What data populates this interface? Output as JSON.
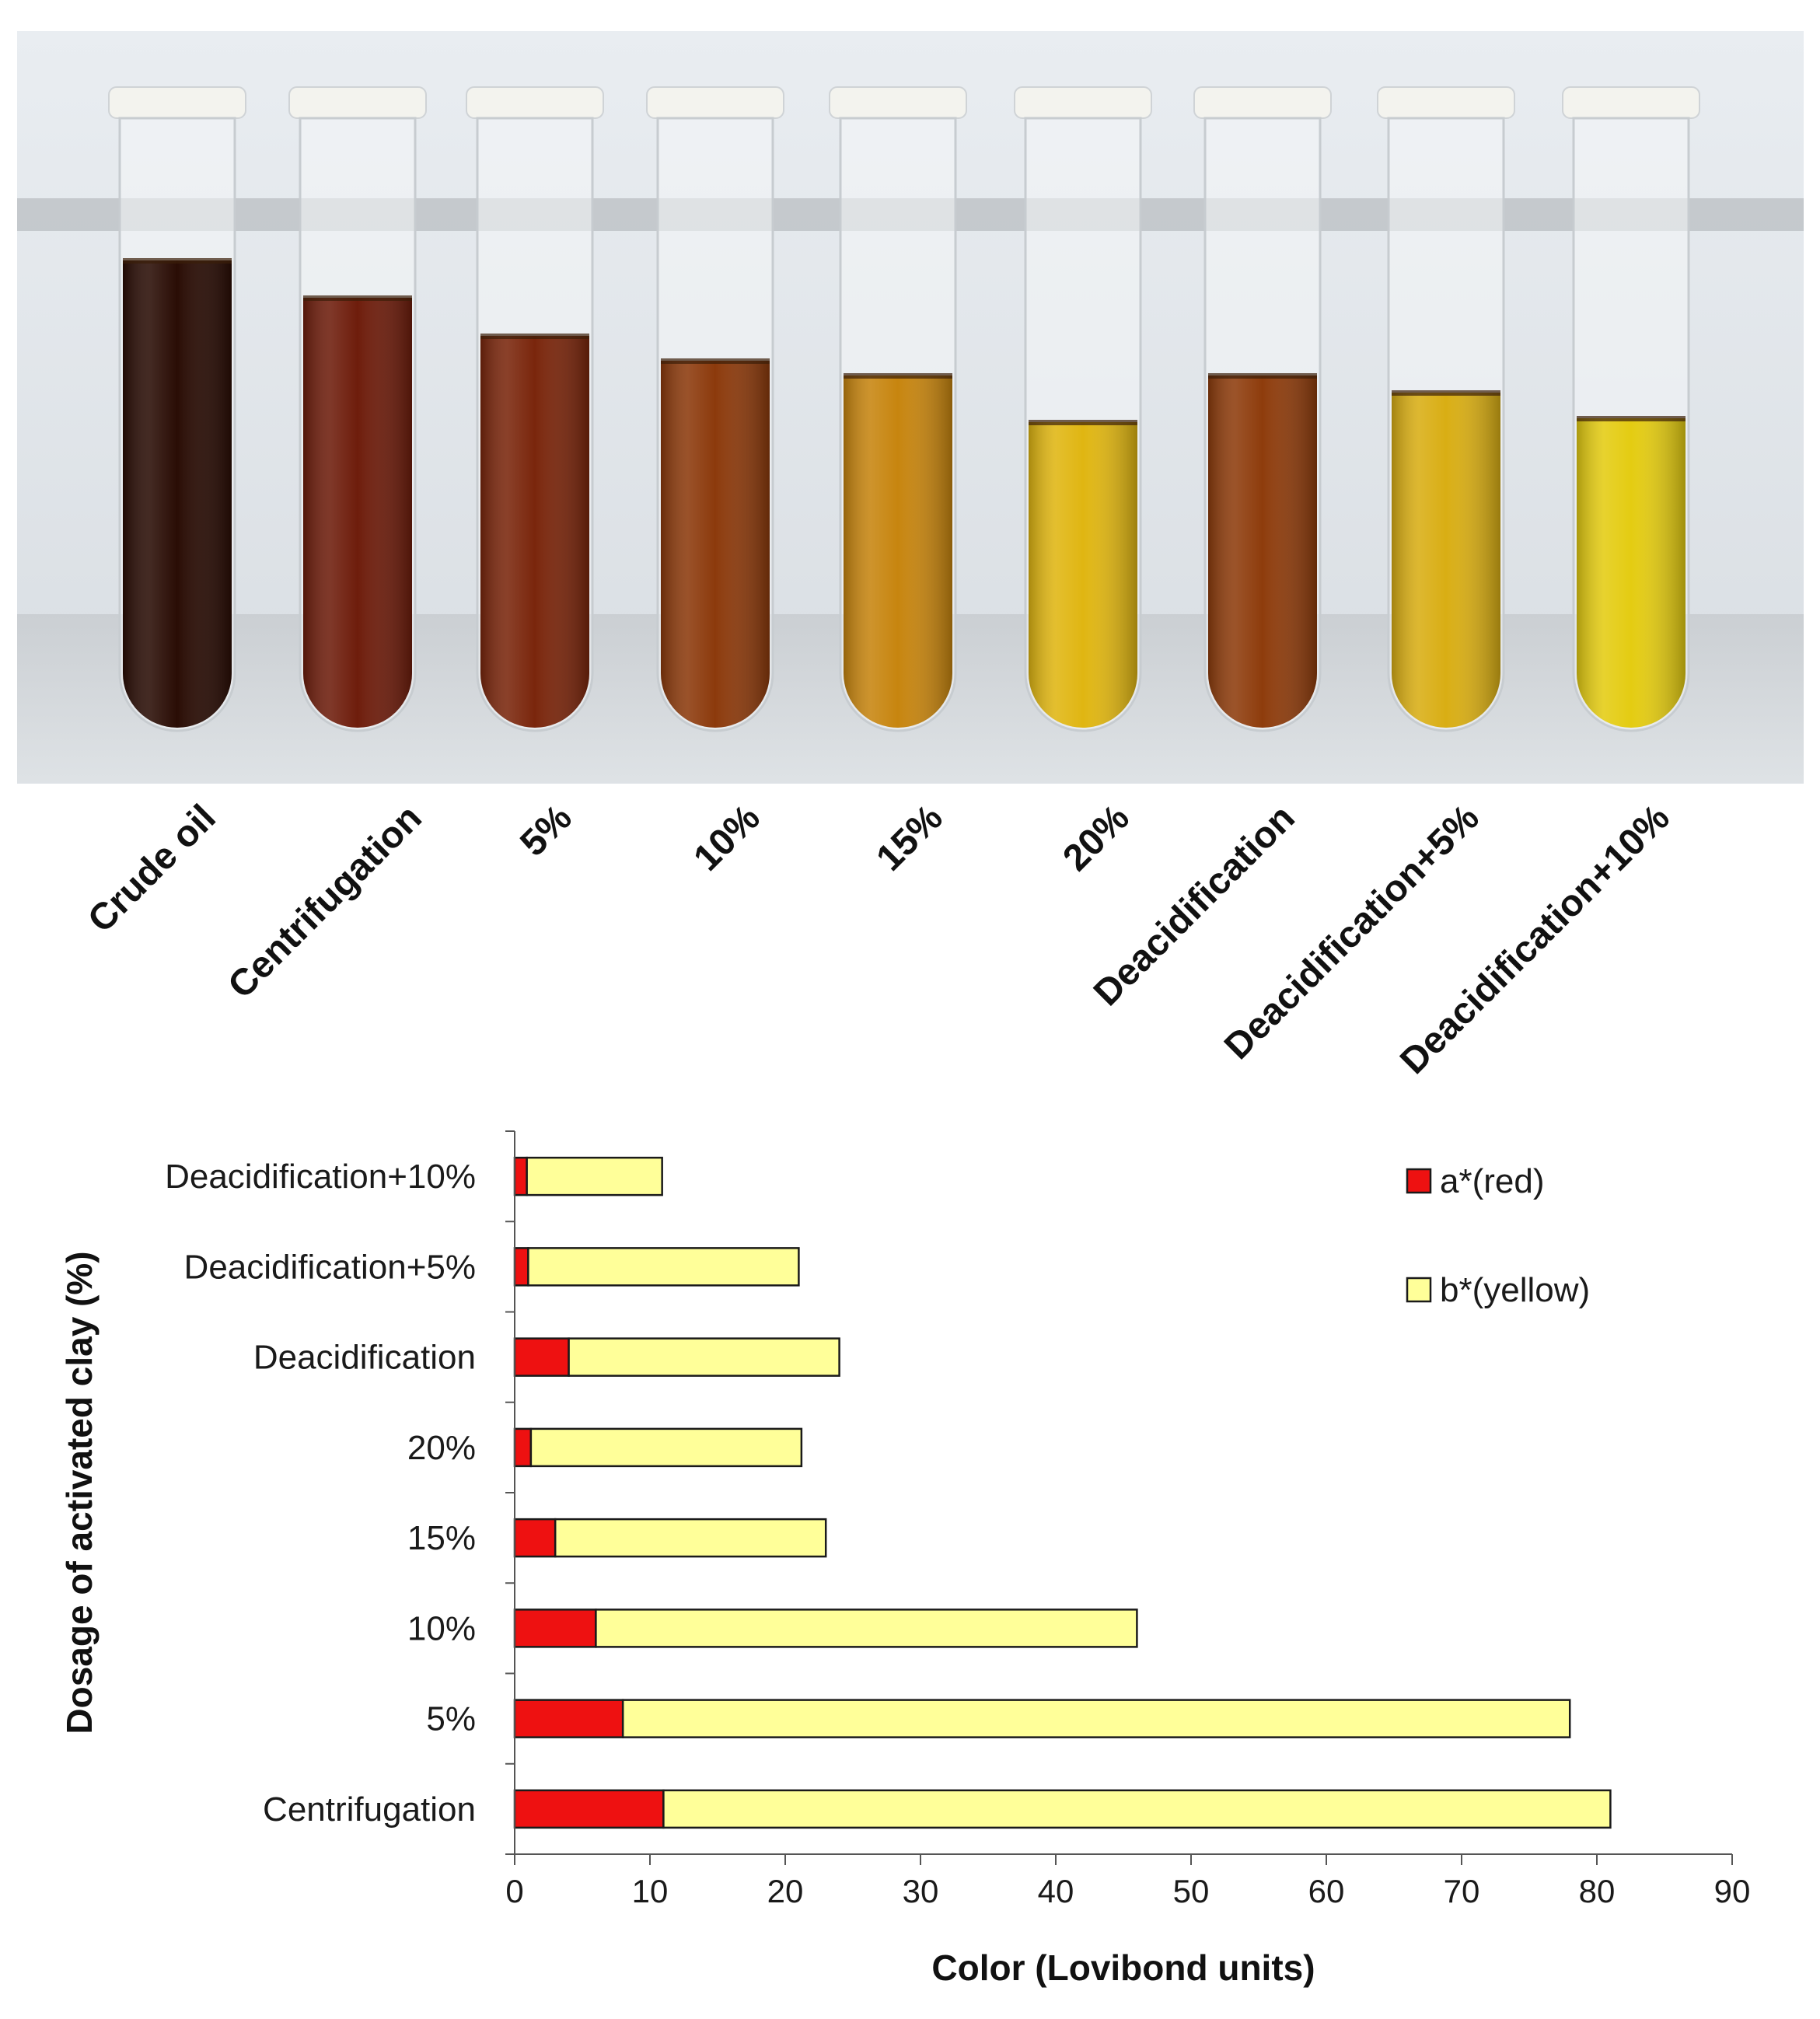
{
  "photo": {
    "tube_labels": [
      "Crude oil",
      "Centrifugation",
      "5%",
      "10%",
      "15%",
      "20%",
      "Deacidification",
      "Deacidification+5%",
      "Deacidification+10%"
    ],
    "tube_colors": [
      "#2a0d05",
      "#6e1d0c",
      "#7a260c",
      "#8c3a0c",
      "#c7850f",
      "#e0b612",
      "#8e3c0c",
      "#d9ae14",
      "#e4cc12"
    ]
  },
  "chart_data": {
    "type": "bar",
    "orientation": "horizontal",
    "stacked": true,
    "categories": [
      "Centrifugation",
      "5%",
      "10%",
      "15%",
      "20%",
      "Deacidification",
      "Deacidification+5%",
      "Deacidification+10%"
    ],
    "series": [
      {
        "name": "a*(red)",
        "color": "#ee1111",
        "values": [
          11,
          8,
          6,
          3,
          1.2,
          4,
          1,
          0.9
        ]
      },
      {
        "name": "b*(yellow)",
        "color": "#ffff99",
        "values": [
          70,
          70,
          40,
          20,
          20,
          20,
          20,
          10
        ]
      }
    ],
    "xlabel": "Color (Lovibond units)",
    "ylabel": "Dosage of activated clay (%)",
    "xlim": [
      0,
      90
    ],
    "xticks": [
      0,
      10,
      20,
      30,
      40,
      50,
      60,
      70,
      80,
      90
    ],
    "grid": false,
    "legend": "top-right"
  }
}
